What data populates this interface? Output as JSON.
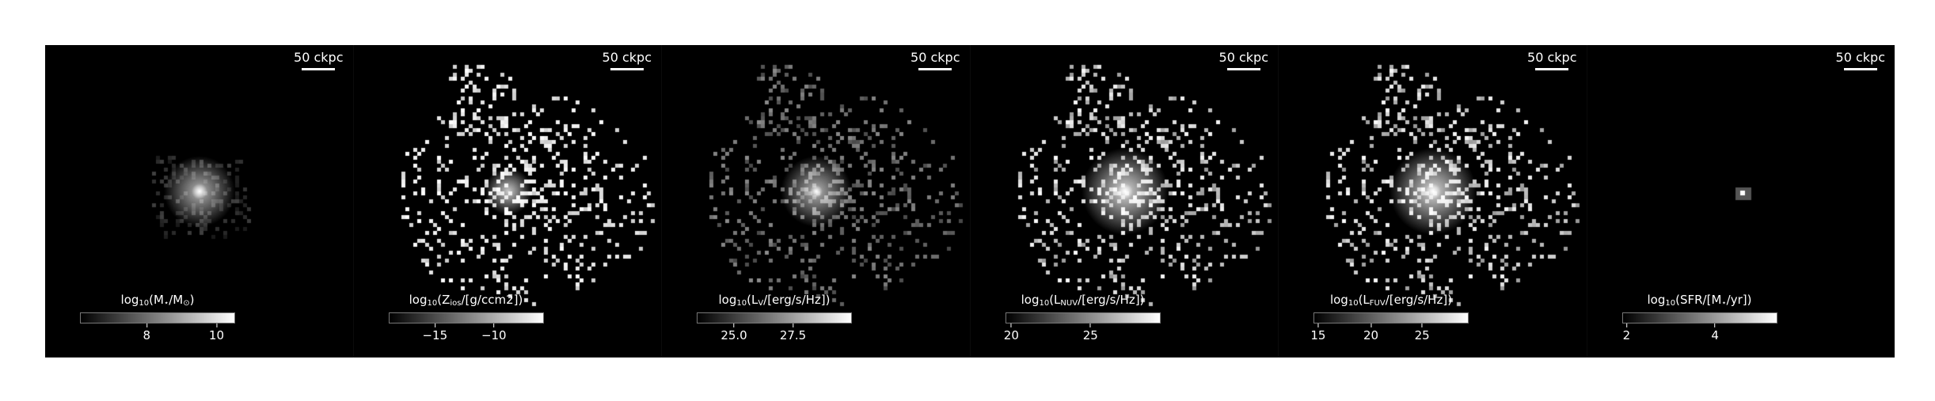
{
  "panels": [
    {
      "scalebar": "50 ckpc",
      "colorbar": {
        "pre": "log",
        "base": "10",
        "mid": "(M",
        "sub": "⋆",
        "post": "/M",
        "sub2": "⊙",
        "end": ")"
      },
      "ticks": [
        {
          "label": "8"
        },
        {
          "label": "10"
        }
      ],
      "tick_fracs": [
        0.43,
        0.88
      ],
      "map": "compact"
    },
    {
      "scalebar": "50 ckpc",
      "colorbar": {
        "pre": "log",
        "base": "10",
        "mid": "(Z",
        "sub": "ios",
        "post": "/[g/ccm",
        "sub2": "",
        "end": "2])"
      },
      "ticks": [
        {
          "label": "−15"
        },
        {
          "label": "−10"
        }
      ],
      "tick_fracs": [
        0.3,
        0.68
      ],
      "map": "sparse"
    },
    {
      "scalebar": "50 ckpc",
      "colorbar": {
        "pre": "log",
        "base": "10",
        "mid": "(L",
        "sub": "V",
        "post": "/[erg/s/Hz])",
        "sub2": "",
        "end": ""
      },
      "ticks": [
        {
          "label": "25.0"
        },
        {
          "label": "27.5"
        }
      ],
      "tick_fracs": [
        0.24,
        0.62
      ],
      "map": "medium"
    },
    {
      "scalebar": "50 ckpc",
      "colorbar": {
        "pre": "log",
        "base": "10",
        "mid": "(L",
        "sub": "NUV",
        "post": "/[erg/s/Hz])",
        "sub2": "",
        "end": ""
      },
      "ticks": [
        {
          "label": "20"
        },
        {
          "label": "25"
        }
      ],
      "tick_fracs": [
        0.04,
        0.55
      ],
      "map": "bright"
    },
    {
      "scalebar": "50 ckpc",
      "colorbar": {
        "pre": "log",
        "base": "10",
        "mid": "(L",
        "sub": "FUV",
        "post": "/[erg/s/Hz])",
        "sub2": "",
        "end": ""
      },
      "ticks": [
        {
          "label": "15"
        },
        {
          "label": "20"
        },
        {
          "label": "25"
        }
      ],
      "tick_fracs": [
        0.03,
        0.37,
        0.7
      ],
      "map": "bright"
    },
    {
      "scalebar": "50 ckpc",
      "colorbar": {
        "pre": "log",
        "base": "10",
        "mid": "(SFR/[M",
        "sub": "⋆",
        "post": "/yr])",
        "sub2": "",
        "end": ""
      },
      "ticks": [
        {
          "label": "2"
        },
        {
          "label": "4"
        }
      ],
      "tick_fracs": [
        0.03,
        0.6
      ],
      "map": "point"
    }
  ]
}
